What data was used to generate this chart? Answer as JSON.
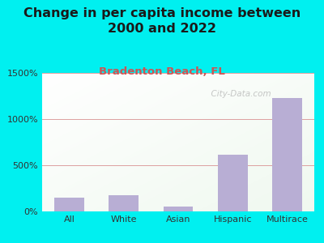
{
  "title": "Change in per capita income between\n2000 and 2022",
  "subtitle": "Bradenton Beach, FL",
  "categories": [
    "All",
    "White",
    "Asian",
    "Hispanic",
    "Multirace"
  ],
  "values": [
    150,
    175,
    55,
    610,
    1230
  ],
  "bar_color": "#b8aed4",
  "title_fontsize": 11.5,
  "subtitle_fontsize": 9.5,
  "subtitle_color": "#cc5555",
  "title_color": "#1a1a1a",
  "background_outer": "#00f0f0",
  "ylim": [
    0,
    1500
  ],
  "yticks": [
    0,
    500,
    1000,
    1500
  ],
  "ytick_labels": [
    "0%",
    "500%",
    "1000%",
    "1500%"
  ],
  "grid_color": "#dda0a0",
  "watermark": "  City-Data.com",
  "watermark_color": "#aaaaaa"
}
